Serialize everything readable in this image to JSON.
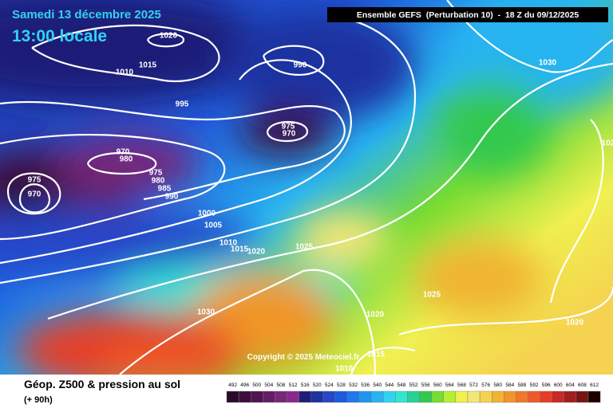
{
  "header": {
    "date": "Samedi 13 décembre 2025",
    "time": "13:00 locale",
    "model": "Ensemble GEFS  (Perturbation 10)  -  18 Z du 09/12/2025"
  },
  "isobar_labels": [
    "1020",
    "1015",
    "1010",
    "995",
    "990",
    "975",
    "970",
    "970",
    "980",
    "975",
    "980",
    "985",
    "990",
    "975",
    "970",
    "1000",
    "1005",
    "1010",
    "1015",
    "1020",
    "1025",
    "1025",
    "1030",
    "1020",
    "1020",
    "1015",
    "1010",
    "1030",
    "102"
  ],
  "copyright": "Copyright © 2025 Meteociel.fr",
  "footer": {
    "title": "Géop. Z500 & pression au sol",
    "lead": "(+ 90h)"
  },
  "legend": {
    "levels": [
      492,
      496,
      500,
      504,
      508,
      512,
      516,
      520,
      524,
      528,
      532,
      536,
      540,
      544,
      548,
      552,
      556,
      560,
      564,
      568,
      572,
      576,
      580,
      584,
      588,
      592,
      596,
      600,
      604,
      608,
      612
    ],
    "colors": [
      "#2a0a2a",
      "#3c0f3c",
      "#501450",
      "#641e64",
      "#782878",
      "#8c288c",
      "#1e1e78",
      "#1e32a0",
      "#2846c8",
      "#1e5adc",
      "#1e78f0",
      "#1e96f0",
      "#28b4f0",
      "#32d2f0",
      "#32e6d2",
      "#28d296",
      "#32c850",
      "#78dc32",
      "#b4f032",
      "#f0f050",
      "#f5e678",
      "#f5d250",
      "#f0b432",
      "#f09628",
      "#f07828",
      "#f05a28",
      "#e63c28",
      "#c82828",
      "#a01e1e",
      "#781414",
      "#1e0000"
    ]
  }
}
